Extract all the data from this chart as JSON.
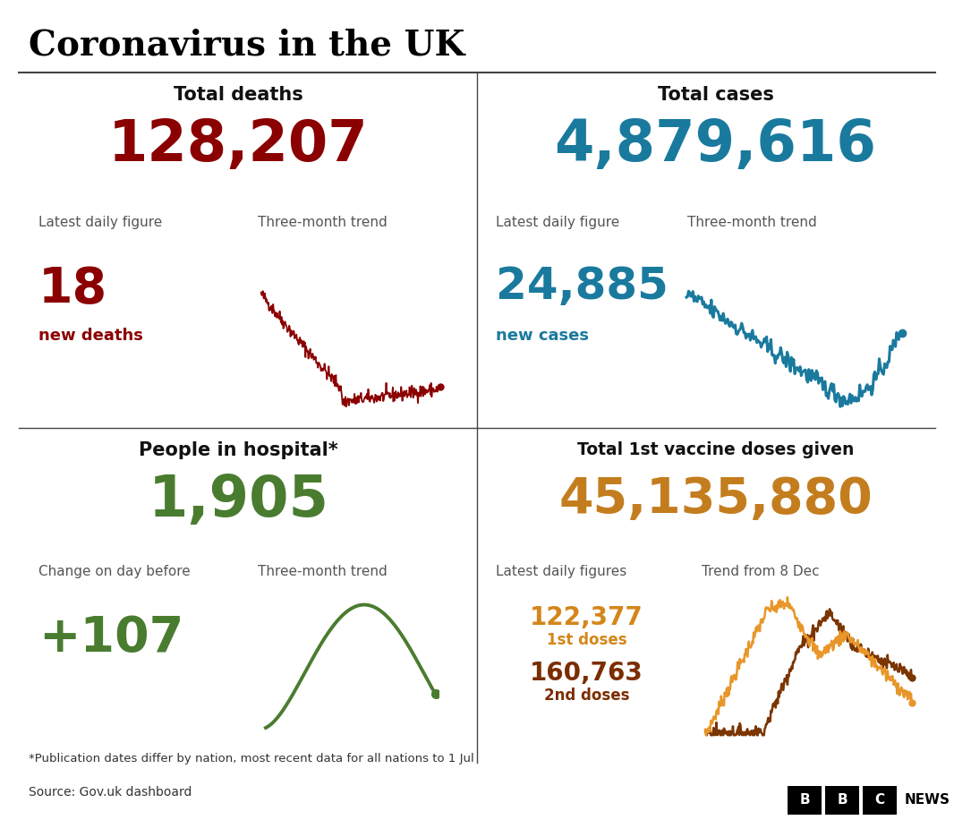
{
  "title": "Coronavirus in the UK",
  "bg_color": "#ffffff",
  "title_color": "#000000",
  "divider_color": "#444444",
  "top_left": {
    "header": "Total deaths",
    "big_number": "128,207",
    "big_number_color": "#8b0000",
    "label1": "Latest daily figure",
    "label2": "Three-month trend",
    "label_color": "#555555",
    "daily_number": "18",
    "daily_label": "new deaths",
    "daily_color": "#8b0000",
    "trend_color": "#8b0000"
  },
  "top_right": {
    "header": "Total cases",
    "big_number": "4,879,616",
    "big_number_color": "#1a7a9e",
    "label1": "Latest daily figure",
    "label2": "Three-month trend",
    "label_color": "#555555",
    "daily_number": "24,885",
    "daily_label": "new cases",
    "daily_color": "#1a7a9e",
    "trend_color": "#1a7a9e"
  },
  "bottom_left": {
    "header": "People in hospital*",
    "big_number": "1,905",
    "big_number_color": "#4a7c2f",
    "label1": "Change on day before",
    "label2": "Three-month trend",
    "label_color": "#555555",
    "daily_number": "+107",
    "daily_color": "#4a7c2f",
    "trend_color": "#4a7c2f"
  },
  "bottom_right": {
    "header": "Total 1st vaccine doses given",
    "big_number": "45,135,880",
    "big_number_color": "#c47d1e",
    "label1": "Latest daily figures",
    "label2": "Trend from 8 Dec",
    "label_color": "#555555",
    "dose1_number": "122,377",
    "dose1_label": "1st doses",
    "dose1_color": "#d4861a",
    "dose2_number": "160,763",
    "dose2_label": "2nd doses",
    "dose2_color": "#7b2d00",
    "trend_color1": "#e8962a",
    "trend_color2": "#7b3500"
  },
  "footnote": "*Publication dates differ by nation, most recent data for all nations to 1 Jul",
  "source": "Source: Gov.uk dashboard",
  "footnote_color": "#333333"
}
